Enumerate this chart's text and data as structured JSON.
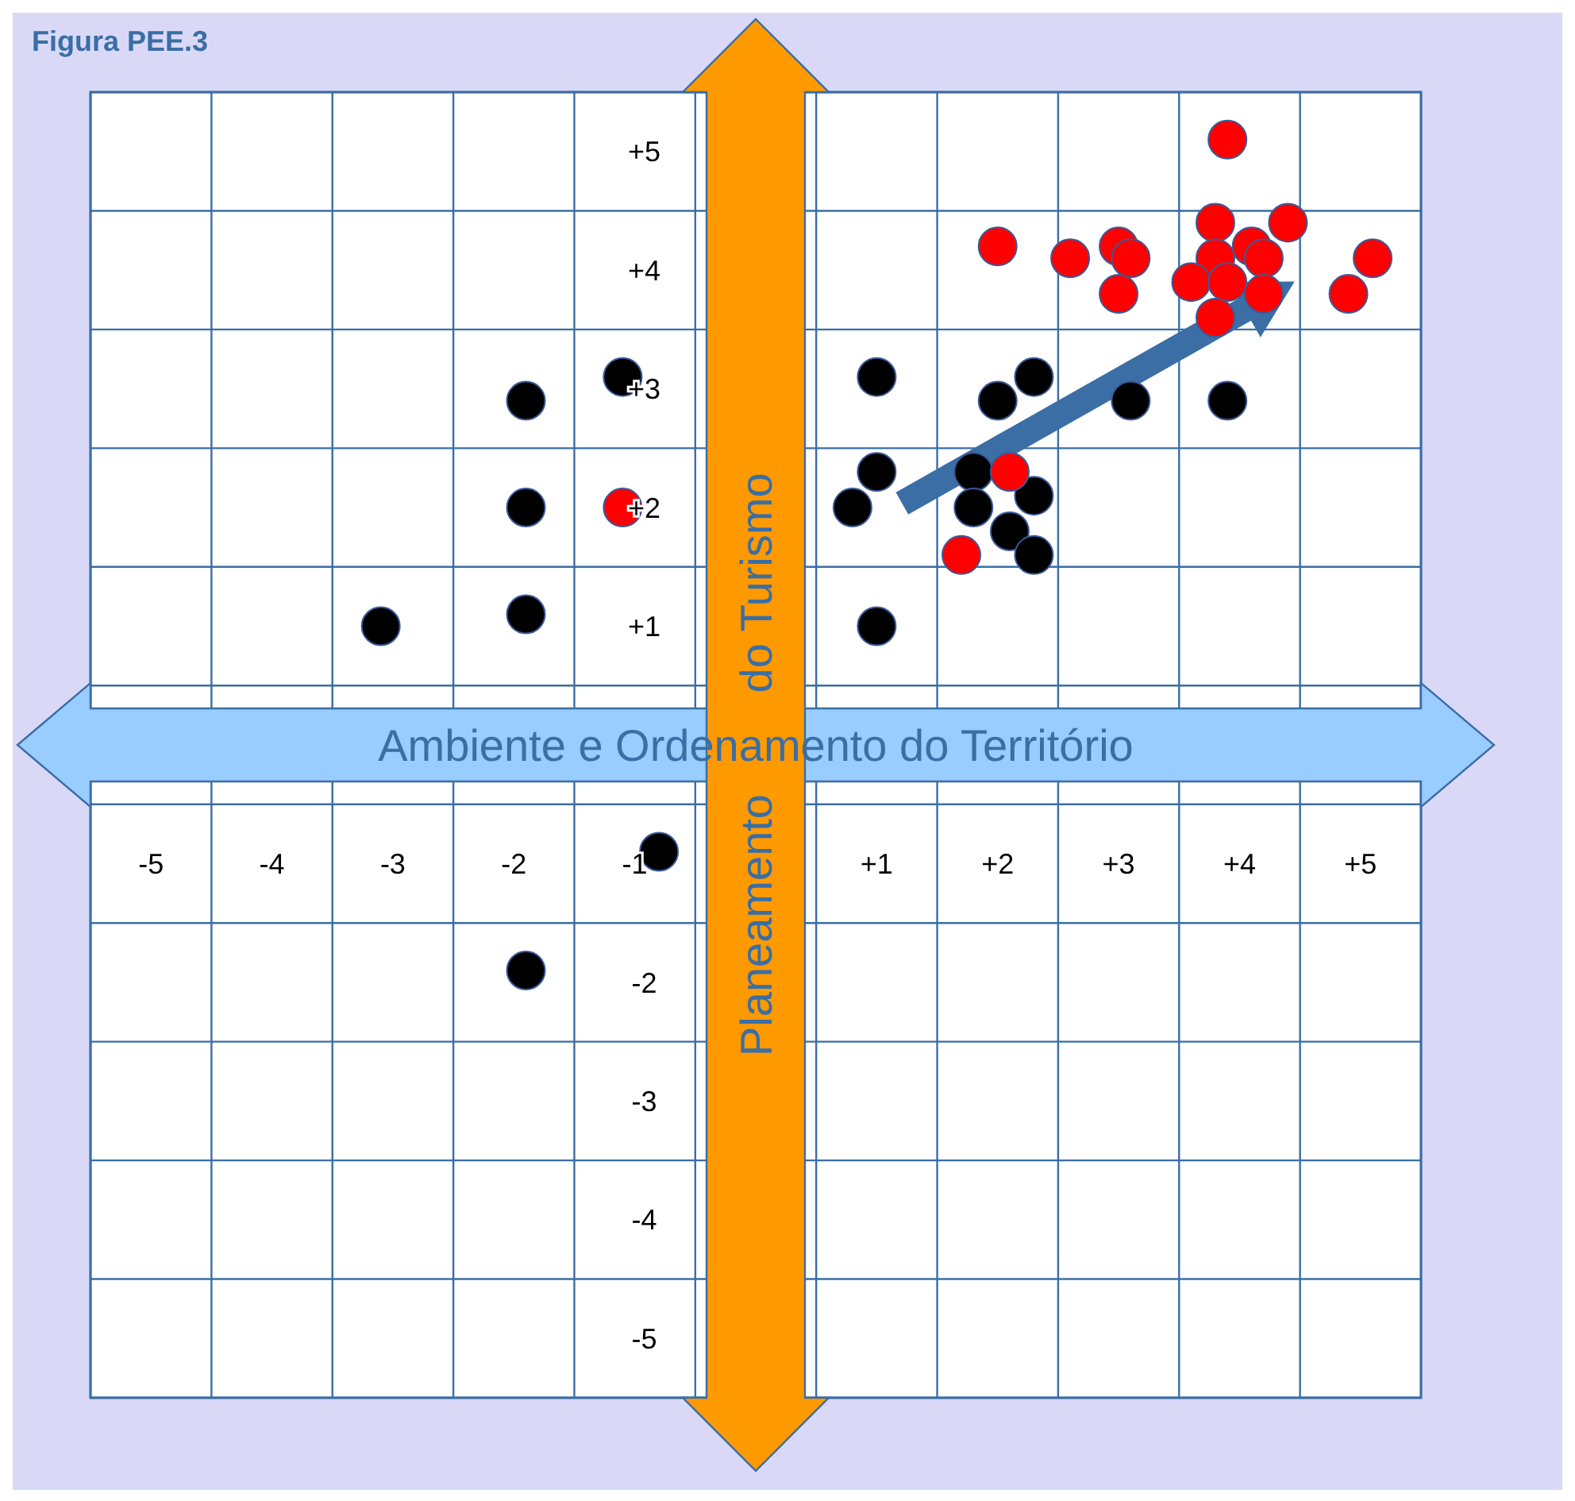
{
  "chart_data": {
    "type": "scatter",
    "title": "Figura PEE.3",
    "xlabel": "Ambiente e Ordenamento do Território",
    "ylabel": "Planeamento do Turismo",
    "xlim": [
      -5.5,
      5.5
    ],
    "ylim": [
      -5.5,
      5.5
    ],
    "xticks": [
      {
        "value": -5.5,
        "label": null
      },
      {
        "value": -5,
        "label": "-5"
      },
      {
        "value": -4.5,
        "label": null
      },
      {
        "value": -4,
        "label": "-4"
      },
      {
        "value": -3.5,
        "label": null
      },
      {
        "value": -3,
        "label": "-3"
      },
      {
        "value": -2.5,
        "label": null
      },
      {
        "value": -2,
        "label": "-2"
      },
      {
        "value": -1.5,
        "label": null
      },
      {
        "value": -1,
        "label": "-1"
      },
      {
        "value": -0.5,
        "label": null
      },
      {
        "value": 0.5,
        "label": null
      },
      {
        "value": 1,
        "label": "+1"
      },
      {
        "value": 1.5,
        "label": null
      },
      {
        "value": 2,
        "label": "+2"
      },
      {
        "value": 2.5,
        "label": null
      },
      {
        "value": 3,
        "label": "+3"
      },
      {
        "value": 3.5,
        "label": null
      },
      {
        "value": 4,
        "label": "+4"
      },
      {
        "value": 4.5,
        "label": null
      },
      {
        "value": 5,
        "label": "+5"
      },
      {
        "value": 5.5,
        "label": null
      }
    ],
    "yticks": [
      {
        "value": -5.5,
        "label": null
      },
      {
        "value": -5,
        "label": "-5"
      },
      {
        "value": -4.5,
        "label": null
      },
      {
        "value": -4,
        "label": "-4"
      },
      {
        "value": -3.5,
        "label": null
      },
      {
        "value": -3,
        "label": "-3"
      },
      {
        "value": -2.5,
        "label": null
      },
      {
        "value": -2,
        "label": "-2"
      },
      {
        "value": -1.5,
        "label": null
      },
      {
        "value": -0.5,
        "label": null
      },
      {
        "value": 0.5,
        "label": null
      },
      {
        "value": 1,
        "label": "+1"
      },
      {
        "value": 1.5,
        "label": null
      },
      {
        "value": 2,
        "label": "+2"
      },
      {
        "value": 2.5,
        "label": null
      },
      {
        "value": 3,
        "label": "+3"
      },
      {
        "value": 3.5,
        "label": null
      },
      {
        "value": 4,
        "label": "+4"
      },
      {
        "value": 4.5,
        "label": null
      },
      {
        "value": 5,
        "label": "+5"
      },
      {
        "value": 5.5,
        "label": null
      }
    ],
    "grid": true,
    "legend": false,
    "marker": "circle",
    "series": [
      {
        "color": "#000000",
        "x": [
          -3.1,
          -1.9,
          -1.9,
          -1.9,
          -1.1,
          -0.8,
          -1.9,
          1.0,
          1.0,
          0.8,
          1.0,
          2.0,
          2.3,
          3.1,
          3.9,
          1.8,
          2.3,
          1.8,
          2.1,
          2.3
        ],
        "values": [
          1.0,
          2.9,
          2.0,
          1.1,
          3.1,
          -0.9,
          -1.9,
          3.1,
          2.3,
          2.0,
          1.0,
          2.9,
          3.1,
          2.9,
          2.9,
          2.3,
          2.1,
          2.0,
          1.8,
          1.6
        ]
      },
      {
        "color": "#ff0000",
        "x": [
          3.9,
          2.0,
          2.6,
          3.0,
          3.1,
          3.0,
          3.8,
          4.1,
          4.4,
          3.8,
          3.6,
          3.9,
          4.2,
          4.2,
          3.8,
          5.1,
          4.9,
          2.1,
          1.7,
          -1.1
        ],
        "values": [
          5.1,
          4.2,
          4.1,
          4.2,
          4.1,
          3.8,
          4.4,
          4.2,
          4.4,
          4.1,
          3.9,
          3.9,
          4.1,
          3.8,
          3.6,
          4.1,
          3.8,
          2.3,
          1.6,
          2.0
        ]
      }
    ]
  }
}
